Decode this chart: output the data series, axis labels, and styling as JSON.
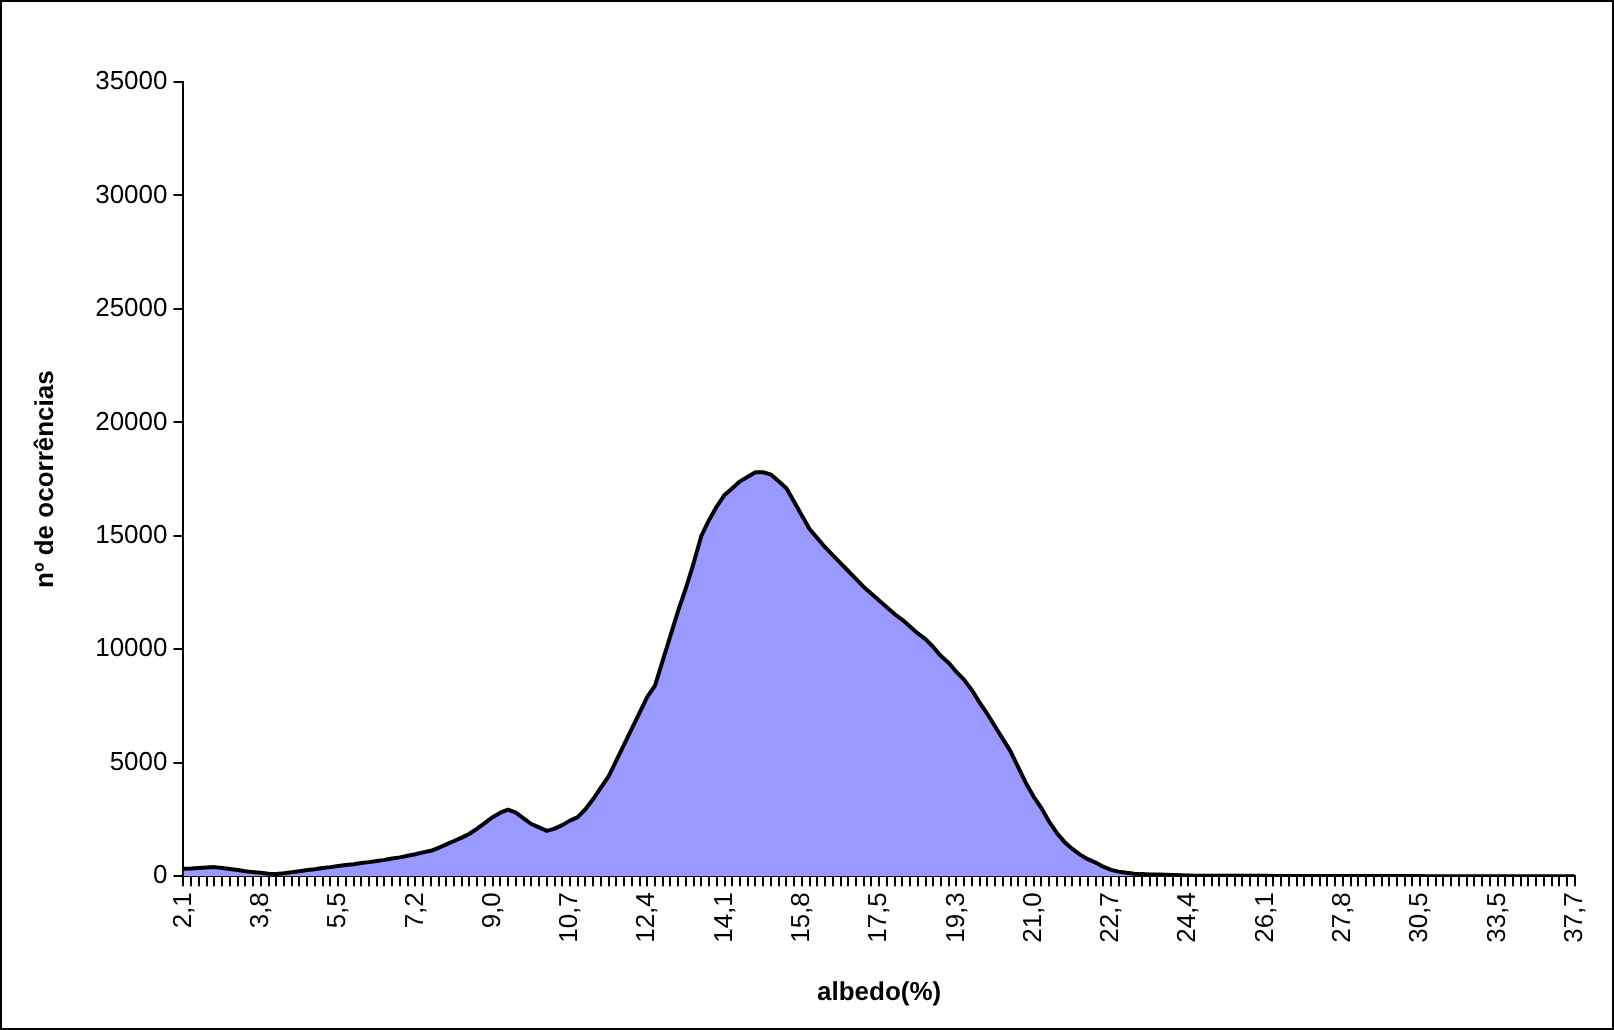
{
  "chart_data": {
    "type": "area",
    "xlabel": "albedo(%)",
    "ylabel": "nº de ocorrências",
    "categories": [
      "2,1",
      null,
      null,
      null,
      null,
      null,
      null,
      null,
      null,
      null,
      "3,8",
      null,
      null,
      null,
      null,
      null,
      null,
      null,
      null,
      null,
      "5,5",
      null,
      null,
      null,
      null,
      null,
      null,
      null,
      null,
      null,
      "7,2",
      null,
      null,
      null,
      null,
      null,
      null,
      null,
      null,
      null,
      "9,0",
      null,
      null,
      null,
      null,
      null,
      null,
      null,
      null,
      null,
      "10,7",
      null,
      null,
      null,
      null,
      null,
      null,
      null,
      null,
      null,
      "12,4",
      null,
      null,
      null,
      null,
      null,
      null,
      null,
      null,
      null,
      "14,1",
      null,
      null,
      null,
      null,
      null,
      null,
      null,
      null,
      null,
      "15,8",
      null,
      null,
      null,
      null,
      null,
      null,
      null,
      null,
      null,
      "17,5",
      null,
      null,
      null,
      null,
      null,
      null,
      null,
      null,
      null,
      "19,3",
      null,
      null,
      null,
      null,
      null,
      null,
      null,
      null,
      null,
      "21,0",
      null,
      null,
      null,
      null,
      null,
      null,
      null,
      null,
      null,
      "22,7",
      null,
      null,
      null,
      null,
      null,
      null,
      null,
      null,
      null,
      "24,4",
      null,
      null,
      null,
      null,
      null,
      null,
      null,
      null,
      null,
      "26,1",
      null,
      null,
      null,
      null,
      null,
      null,
      null,
      null,
      null,
      "27,8",
      null,
      null,
      null,
      null,
      null,
      null,
      null,
      null,
      null,
      "30,5",
      null,
      null,
      null,
      null,
      null,
      null,
      null,
      null,
      null,
      "33,5",
      null,
      null,
      null,
      null,
      null,
      null,
      null,
      null,
      null,
      "37,7"
    ],
    "values": [
      330,
      340,
      360,
      380,
      400,
      360,
      320,
      270,
      220,
      180,
      150,
      110,
      100,
      130,
      170,
      220,
      270,
      310,
      360,
      400,
      450,
      490,
      530,
      580,
      620,
      670,
      720,
      780,
      830,
      900,
      970,
      1050,
      1120,
      1250,
      1400,
      1550,
      1700,
      1870,
      2100,
      2350,
      2600,
      2800,
      2930,
      2800,
      2550,
      2300,
      2150,
      2000,
      2100,
      2250,
      2450,
      2600,
      2950,
      3400,
      3900,
      4400,
      5100,
      5800,
      6500,
      7200,
      7900,
      8400,
      9500,
      10600,
      11700,
      12700,
      13800,
      15000,
      15700,
      16300,
      16800,
      17100,
      17400,
      17600,
      17800,
      17800,
      17700,
      17400,
      17100,
      16500,
      15900,
      15300,
      14900,
      14500,
      14150,
      13800,
      13450,
      13100,
      12750,
      12450,
      12150,
      11850,
      11550,
      11300,
      11000,
      10700,
      10450,
      10100,
      9700,
      9400,
      9000,
      8650,
      8200,
      7650,
      7150,
      6600,
      6050,
      5500,
      4800,
      4100,
      3500,
      3000,
      2400,
      1900,
      1500,
      1200,
      950,
      750,
      600,
      420,
      280,
      200,
      150,
      110,
      100,
      80,
      70,
      60,
      50,
      40,
      30,
      20,
      20,
      20,
      20,
      20,
      20,
      20,
      20,
      20,
      20,
      10,
      10,
      10,
      10,
      10,
      10,
      10,
      10,
      10,
      10,
      10,
      10,
      10,
      10,
      10,
      10,
      10,
      10,
      10,
      10,
      0,
      0,
      0,
      0,
      0,
      0,
      0,
      0,
      0,
      0,
      0,
      0,
      0,
      0,
      0,
      0,
      0,
      0,
      0,
      0
    ],
    "color": "#9999ff",
    "ylim": [
      0,
      35000
    ],
    "yticks": [
      0,
      5000,
      10000,
      15000,
      20000,
      25000,
      30000,
      35000
    ]
  }
}
